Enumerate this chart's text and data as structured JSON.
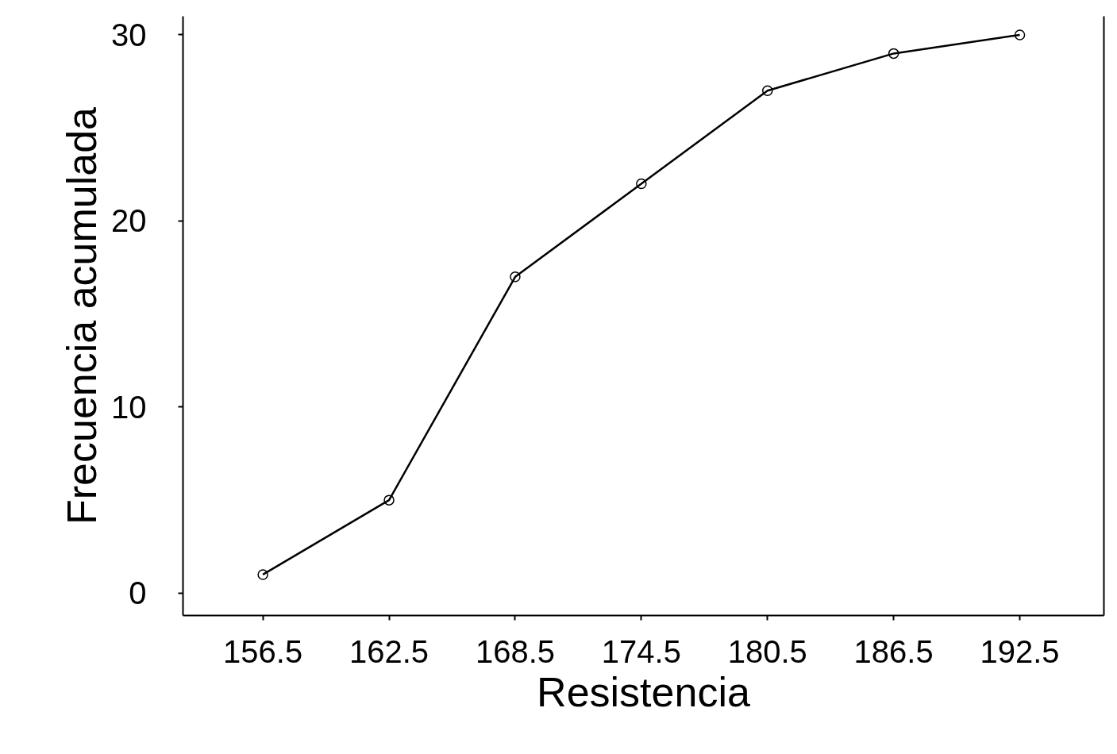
{
  "chart_data": {
    "type": "line",
    "xlabel": "Resistencia",
    "ylabel": "Frecuencia acumulada",
    "x": [
      156.5,
      162.5,
      168.5,
      174.5,
      180.5,
      186.5,
      192.5
    ],
    "series": [
      {
        "color": "#000000",
        "values": [
          1,
          5,
          17,
          22,
          27,
          29,
          30
        ]
      }
    ],
    "xlim": [
      152.7,
      196.5
    ],
    "ylim": [
      -1.2,
      31
    ],
    "xticks": [
      156.5,
      162.5,
      168.5,
      174.5,
      180.5,
      186.5,
      192.5
    ],
    "yticks": [
      0,
      10,
      20,
      30
    ],
    "grid": false,
    "marker": "circle",
    "line_style": "solid"
  }
}
